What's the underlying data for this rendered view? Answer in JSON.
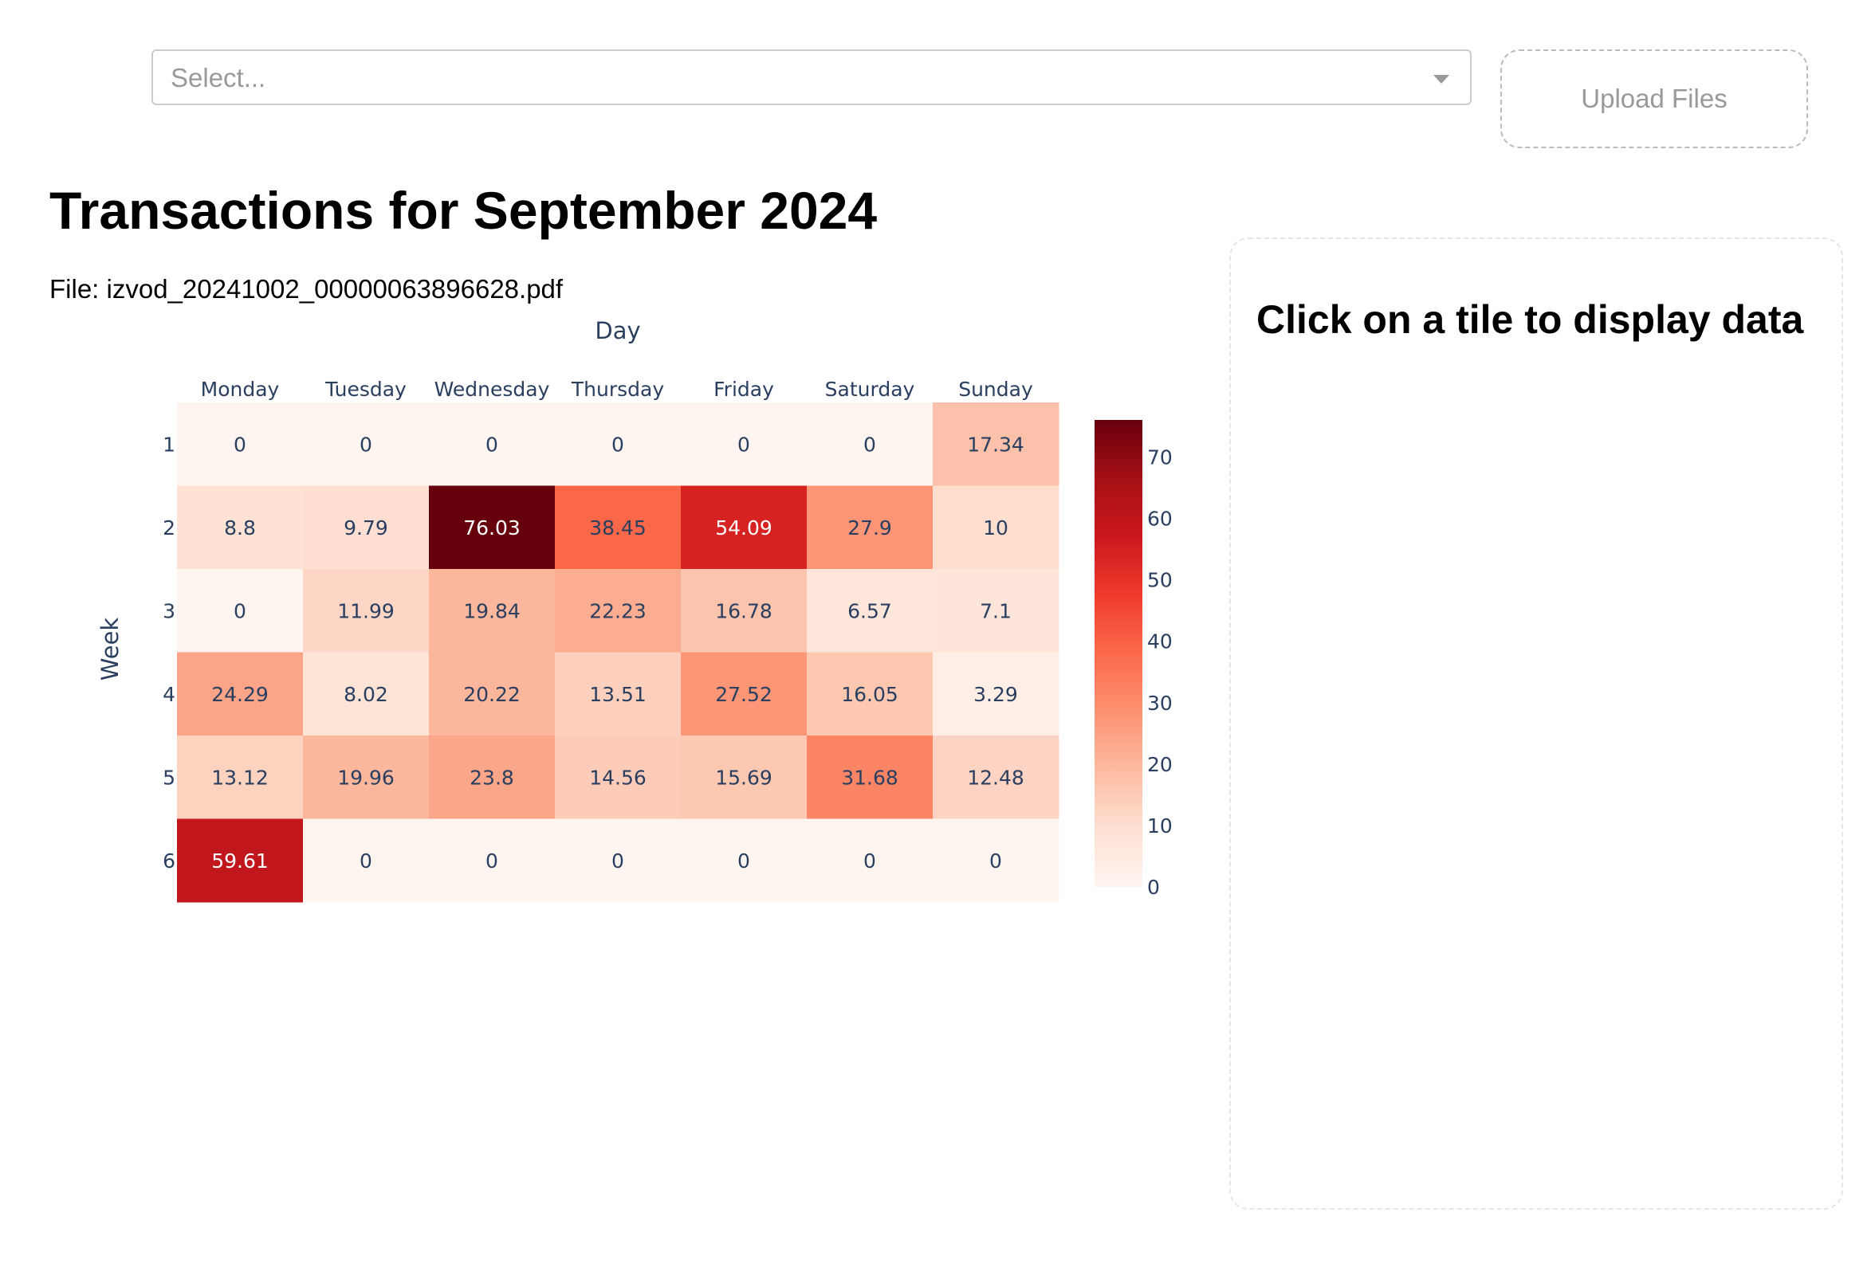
{
  "select": {
    "placeholder": "Select..."
  },
  "upload": {
    "label": "Upload Files"
  },
  "main": {
    "title": "Transactions for September 2024",
    "file_line": "File: izvod_20241002_00000063896628.pdf"
  },
  "side_panel": {
    "title": "Click on a tile to display data"
  },
  "colors": {
    "colorscale": [
      "#fff5f0",
      "#fee0d2",
      "#fcbba1",
      "#fc9272",
      "#fb6a4a",
      "#ef3b2c",
      "#cb181d",
      "#a50f15",
      "#67000d"
    ],
    "axis_text": "#2a3f5f"
  },
  "chart_data": {
    "type": "heatmap",
    "xlabel": "Day",
    "ylabel": "Week",
    "x": [
      "Monday",
      "Tuesday",
      "Wednesday",
      "Thursday",
      "Friday",
      "Saturday",
      "Sunday"
    ],
    "y": [
      "1",
      "2",
      "3",
      "4",
      "5",
      "6"
    ],
    "z": [
      [
        0,
        0,
        0,
        0,
        0,
        0,
        17.34
      ],
      [
        8.8,
        9.79,
        76.03,
        38.45,
        54.09,
        27.9,
        10
      ],
      [
        0,
        11.99,
        19.84,
        22.23,
        16.78,
        6.57,
        7.1
      ],
      [
        24.29,
        8.02,
        20.22,
        13.51,
        27.52,
        16.05,
        3.29
      ],
      [
        13.12,
        19.96,
        23.8,
        14.56,
        15.69,
        31.68,
        12.48
      ],
      [
        59.61,
        0,
        0,
        0,
        0,
        0,
        0
      ]
    ],
    "zmin": 0,
    "zmax": 76.03,
    "colorbar_ticks": [
      0,
      10,
      20,
      30,
      40,
      50,
      60,
      70
    ],
    "x_axis_side": "top",
    "colorbar_position": "right"
  }
}
